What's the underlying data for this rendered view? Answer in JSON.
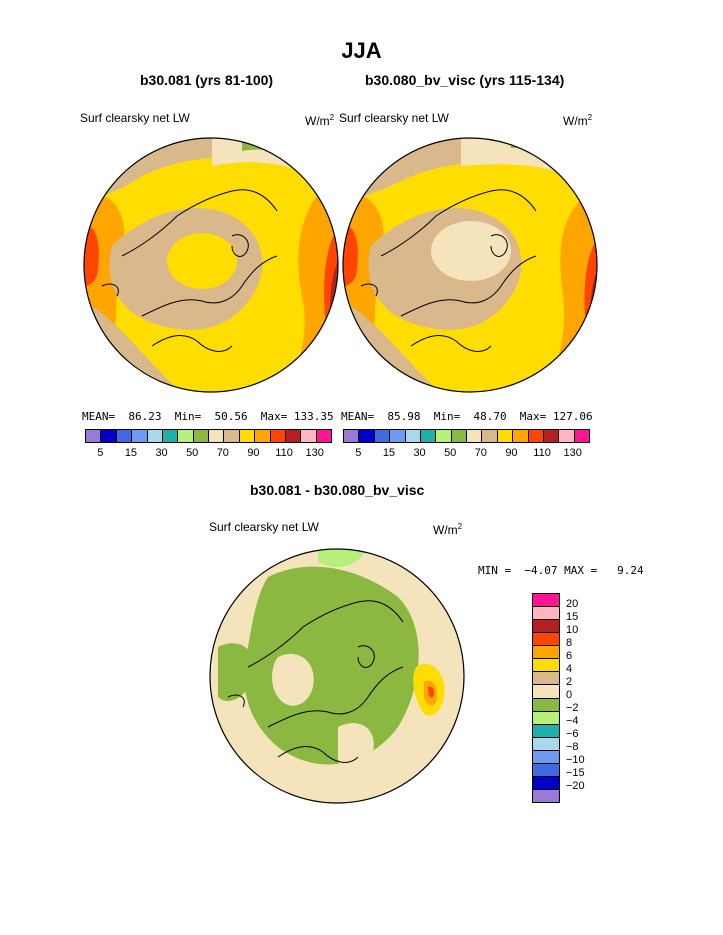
{
  "title": "JJA",
  "panels": [
    {
      "subtitle": "b30.081 (yrs 81-100)",
      "label": "Surf clearsky net LW",
      "unit": "W/m",
      "unit_sup": "2",
      "stats": "MEAN=  86.23  Min=  50.56  Max= 133.35"
    },
    {
      "subtitle": "b30.080_bv_visc (yrs 115-134)",
      "label": "Surf clearsky net LW",
      "unit": "W/m",
      "unit_sup": "2",
      "stats": "MEAN=  85.98  Min=  48.70  Max= 127.06"
    }
  ],
  "diff": {
    "subtitle": "b30.081 - b30.080_bv_visc",
    "label": "Surf clearsky net LW",
    "unit": "W/m",
    "unit_sup": "2",
    "stats": "MIN =  −4.07 MAX =   9.24"
  },
  "abs_colorbar": {
    "colors": [
      "#9a79d9",
      "#0000c8",
      "#4169e1",
      "#6d9bf0",
      "#a8d8ea",
      "#20b2aa",
      "#b4f07a",
      "#8ab840",
      "#f5e3bc",
      "#d9b88c",
      "#ffdd00",
      "#ffa500",
      "#ff4500",
      "#b22222",
      "#ffb6c1",
      "#ff1493"
    ],
    "ticks": [
      "5",
      "15",
      "30",
      "50",
      "70",
      "90",
      "110",
      "130"
    ]
  },
  "diff_colorbar": {
    "colors": [
      "#ff1493",
      "#ffb6c1",
      "#b22222",
      "#ff4500",
      "#ffa500",
      "#ffdd00",
      "#d9b88c",
      "#f5e3bc",
      "#8ab840",
      "#b4f07a",
      "#20b2aa",
      "#a8d8ea",
      "#6d9bf0",
      "#4169e1",
      "#0000c8",
      "#9a79d9"
    ],
    "ticks": [
      "20",
      "15",
      "10",
      "8",
      "6",
      "4",
      "2",
      "0",
      "−2",
      "−4",
      "−6",
      "−8",
      "−10",
      "−15",
      "−20"
    ]
  }
}
